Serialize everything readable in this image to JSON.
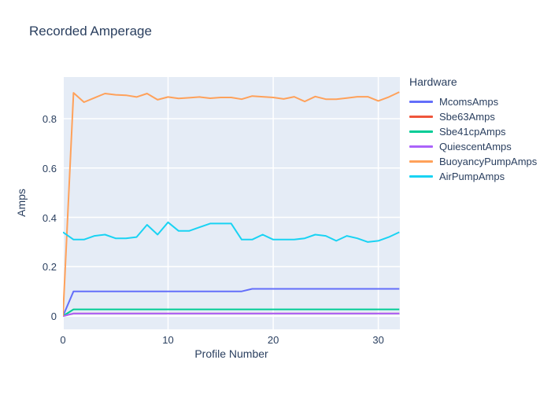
{
  "title": "Recorded Amperage",
  "colors": {
    "text": "#2a3f5f",
    "paper_bg": "#ffffff",
    "plot_bg": "#e5ecf6",
    "grid": "#ffffff"
  },
  "axes": {
    "x": {
      "label": "Profile Number",
      "ticks": [
        {
          "value": 0,
          "label": "0"
        },
        {
          "value": 10,
          "label": "10"
        },
        {
          "value": 20,
          "label": "20"
        },
        {
          "value": 30,
          "label": "30"
        }
      ]
    },
    "y": {
      "label": "Amps",
      "ticks": [
        {
          "value": 0,
          "label": "0"
        },
        {
          "value": 0.2,
          "label": "0.2"
        },
        {
          "value": 0.4,
          "label": "0.4"
        },
        {
          "value": 0.6,
          "label": "0.6"
        },
        {
          "value": 0.8,
          "label": "0.8"
        }
      ]
    }
  },
  "legend": {
    "title": "Hardware",
    "position": "right"
  },
  "chart_data": {
    "type": "line",
    "title": "Recorded Amperage",
    "xlabel": "Profile Number",
    "ylabel": "Amps",
    "xlim": [
      0,
      32.05
    ],
    "ylim": [
      -0.054,
      0.969
    ],
    "grid": true,
    "legend_title": "Hardware",
    "legend_position": "right",
    "x": [
      0,
      1,
      2,
      3,
      4,
      5,
      6,
      7,
      8,
      9,
      10,
      11,
      12,
      13,
      14,
      15,
      16,
      17,
      18,
      19,
      20,
      21,
      22,
      23,
      24,
      25,
      26,
      27,
      28,
      29,
      30,
      31,
      32
    ],
    "series": [
      {
        "name": "McomsAmps",
        "color": "#636efa",
        "values": [
          0,
          0.1,
          0.1,
          0.1,
          0.1,
          0.1,
          0.1,
          0.1,
          0.1,
          0.1,
          0.1,
          0.1,
          0.1,
          0.1,
          0.1,
          0.1,
          0.1,
          0.1,
          0.11,
          0.11,
          0.11,
          0.11,
          0.11,
          0.11,
          0.11,
          0.11,
          0.11,
          0.11,
          0.11,
          0.11,
          0.11,
          0.11,
          0.11
        ]
      },
      {
        "name": "Sbe63Amps",
        "color": "#ef553b",
        "values": [
          0,
          0.01,
          0.01,
          0.01,
          0.01,
          0.01,
          0.01,
          0.01,
          0.01,
          0.01,
          0.01,
          0.01,
          0.01,
          0.01,
          0.01,
          0.01,
          0.01,
          0.01,
          0.01,
          0.01,
          0.01,
          0.01,
          0.01,
          0.01,
          0.01,
          0.01,
          0.01,
          0.01,
          0.01,
          0.01,
          0.01,
          0.01,
          0.01
        ]
      },
      {
        "name": "Sbe41cpAmps",
        "color": "#00cc96",
        "values": [
          0,
          0.027,
          0.027,
          0.027,
          0.027,
          0.027,
          0.027,
          0.027,
          0.027,
          0.027,
          0.027,
          0.027,
          0.027,
          0.027,
          0.027,
          0.027,
          0.027,
          0.027,
          0.027,
          0.027,
          0.027,
          0.027,
          0.027,
          0.027,
          0.027,
          0.027,
          0.027,
          0.027,
          0.027,
          0.027,
          0.027,
          0.027,
          0.027
        ]
      },
      {
        "name": "QuiescentAmps",
        "color": "#ab63fa",
        "values": [
          0,
          0.01,
          0.01,
          0.01,
          0.01,
          0.01,
          0.01,
          0.01,
          0.01,
          0.01,
          0.01,
          0.01,
          0.01,
          0.01,
          0.01,
          0.01,
          0.01,
          0.01,
          0.01,
          0.01,
          0.01,
          0.01,
          0.01,
          0.01,
          0.01,
          0.01,
          0.01,
          0.01,
          0.01,
          0.01,
          0.01,
          0.01,
          0.01
        ]
      },
      {
        "name": "BuoyancyPumpAmps",
        "color": "#ffa15a",
        "values": [
          0,
          0.905,
          0.867,
          0.885,
          0.902,
          0.897,
          0.895,
          0.888,
          0.902,
          0.877,
          0.888,
          0.882,
          0.885,
          0.888,
          0.883,
          0.886,
          0.886,
          0.879,
          0.892,
          0.889,
          0.886,
          0.88,
          0.889,
          0.87,
          0.89,
          0.879,
          0.879,
          0.884,
          0.889,
          0.889,
          0.872,
          0.888,
          0.908
        ]
      },
      {
        "name": "AirPumpAmps",
        "color": "#19d3f3",
        "values": [
          0.34,
          0.31,
          0.31,
          0.325,
          0.33,
          0.315,
          0.315,
          0.32,
          0.37,
          0.33,
          0.38,
          0.345,
          0.345,
          0.36,
          0.375,
          0.375,
          0.375,
          0.31,
          0.31,
          0.33,
          0.31,
          0.31,
          0.31,
          0.315,
          0.33,
          0.325,
          0.305,
          0.325,
          0.315,
          0.3,
          0.305,
          0.32,
          0.34
        ]
      }
    ]
  }
}
